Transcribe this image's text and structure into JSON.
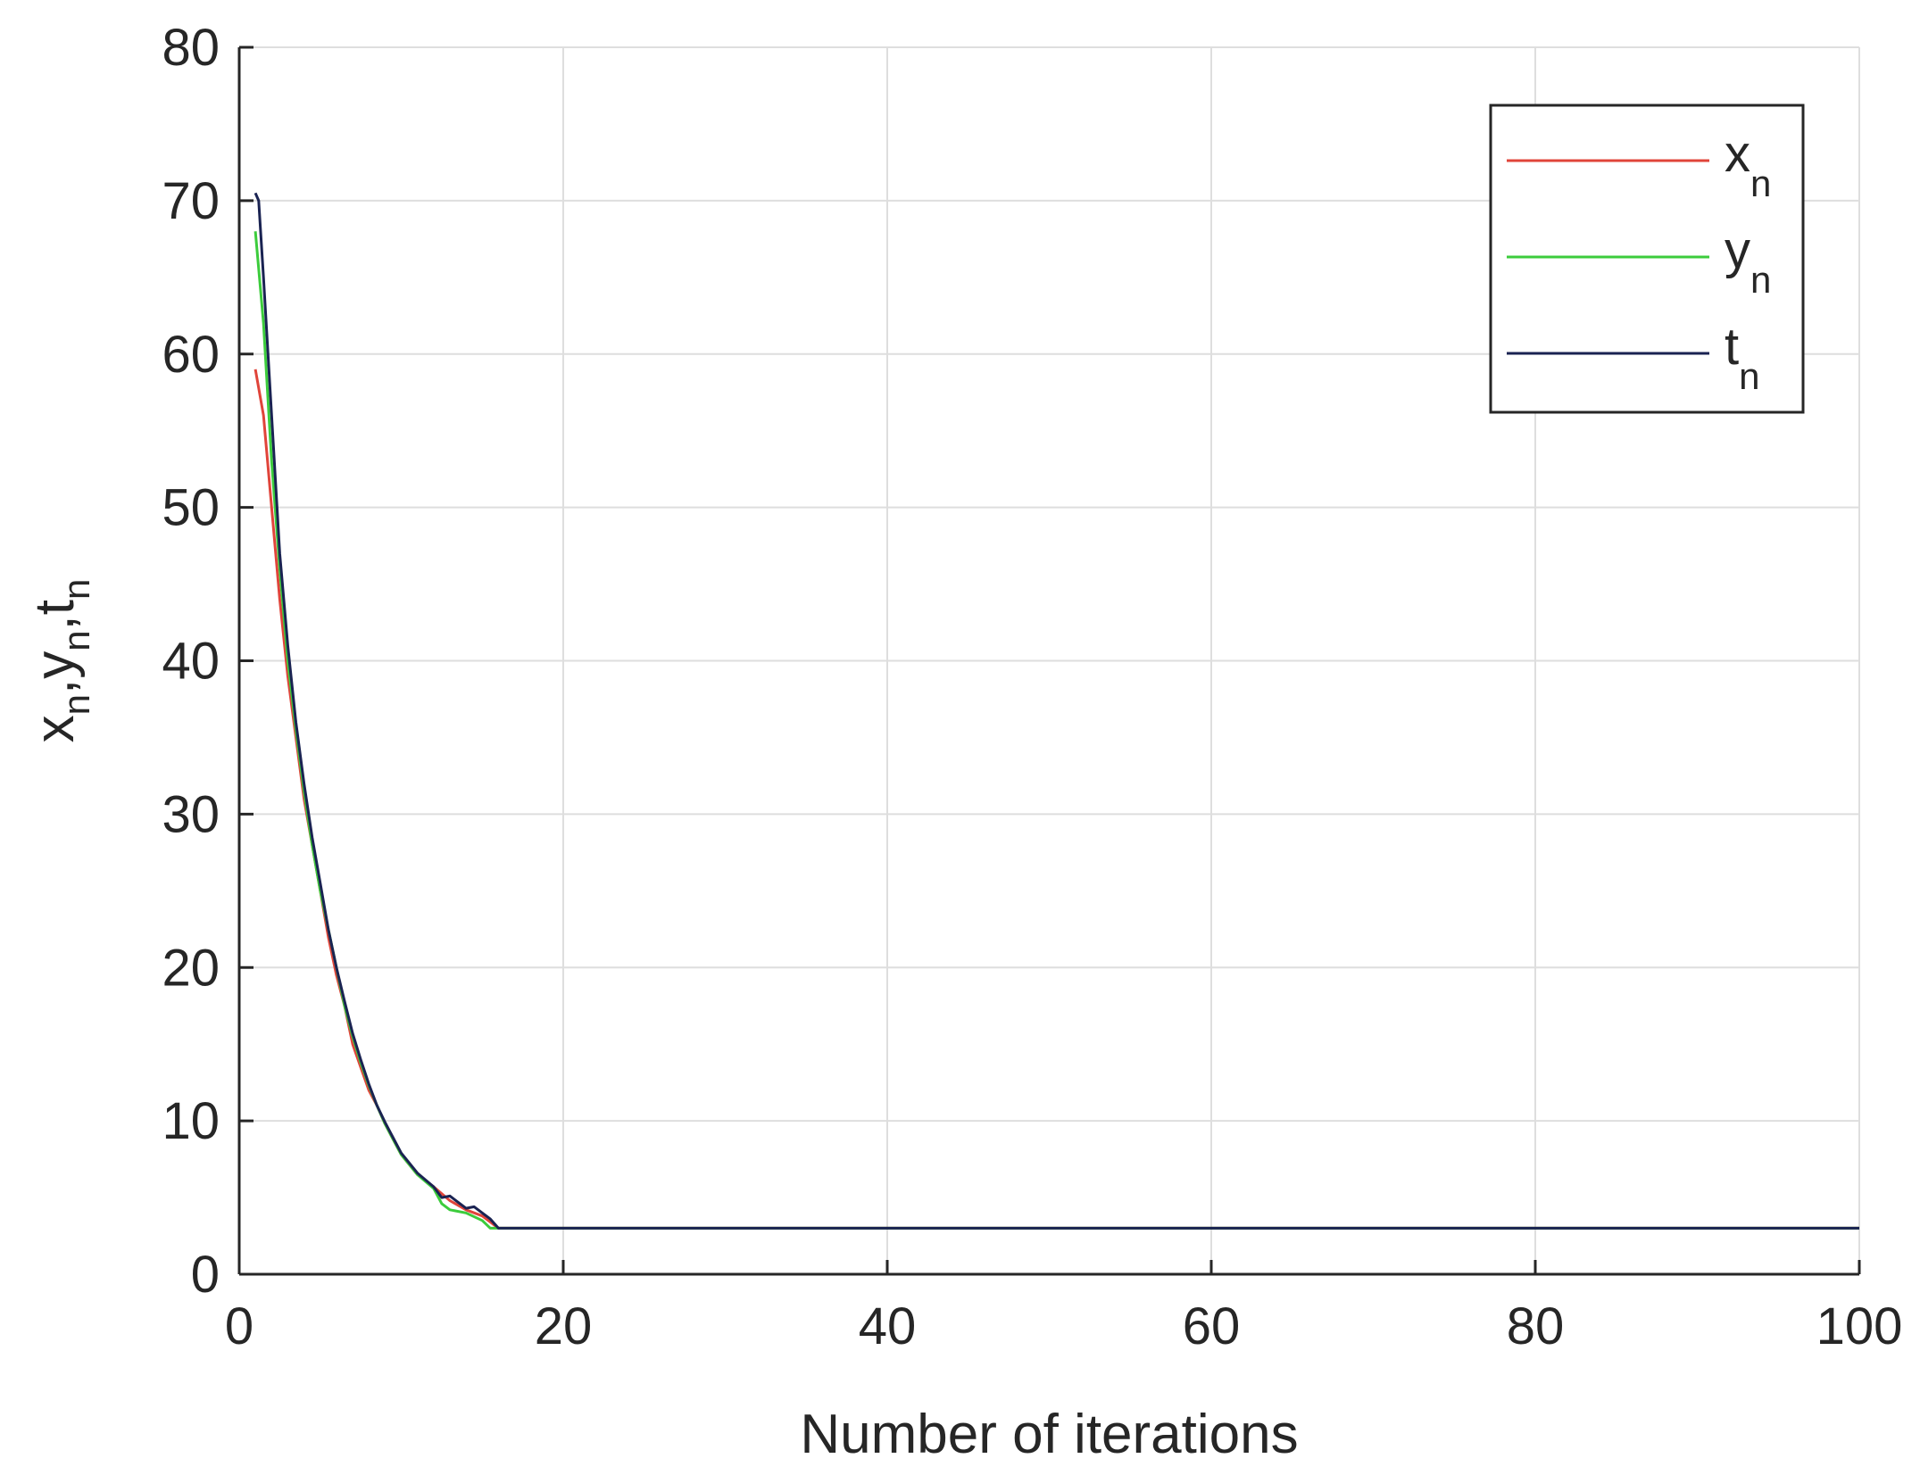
{
  "chart_data": {
    "type": "line",
    "xlabel": "Number of iterations",
    "ylabel": {
      "parts": [
        [
          "x",
          "n"
        ],
        [
          "y",
          "n"
        ],
        [
          "t",
          "n"
        ]
      ],
      "separator": ","
    },
    "xlim": [
      0,
      100
    ],
    "ylim": [
      0,
      80
    ],
    "xticks": [
      0,
      20,
      40,
      60,
      80,
      100
    ],
    "yticks": [
      0,
      10,
      20,
      30,
      40,
      50,
      60,
      70,
      80
    ],
    "grid": true,
    "legend_position": "top-right",
    "series": [
      {
        "name": "x",
        "name_sub": "n",
        "color": "#e0443a",
        "points": [
          [
            1,
            59
          ],
          [
            1.5,
            56
          ],
          [
            2,
            50
          ],
          [
            2.5,
            44
          ],
          [
            3,
            39
          ],
          [
            3.5,
            35
          ],
          [
            4,
            31
          ],
          [
            4.5,
            28
          ],
          [
            5,
            25
          ],
          [
            5.5,
            22
          ],
          [
            6,
            19.5
          ],
          [
            6.5,
            17.5
          ],
          [
            7,
            15
          ],
          [
            7.5,
            13.5
          ],
          [
            8,
            12
          ],
          [
            8.5,
            11
          ],
          [
            9,
            9.8
          ],
          [
            9.5,
            8.8
          ],
          [
            10,
            7.8
          ],
          [
            11,
            6.5
          ],
          [
            12,
            5.7
          ],
          [
            13,
            4.8
          ],
          [
            14,
            4.2
          ],
          [
            15,
            3.8
          ],
          [
            16,
            3
          ],
          [
            20,
            3
          ],
          [
            40,
            3
          ],
          [
            60,
            3
          ],
          [
            80,
            3
          ],
          [
            100,
            3
          ]
        ]
      },
      {
        "name": "y",
        "name_sub": "n",
        "color": "#3ccc3c",
        "points": [
          [
            1,
            68
          ],
          [
            1.5,
            62
          ],
          [
            2,
            53
          ],
          [
            2.5,
            46
          ],
          [
            3,
            40
          ],
          [
            3.5,
            35.5
          ],
          [
            4,
            31.5
          ],
          [
            4.5,
            28
          ],
          [
            5,
            25
          ],
          [
            5.5,
            22.5
          ],
          [
            6,
            20
          ],
          [
            6.5,
            17.5
          ],
          [
            7,
            15.5
          ],
          [
            7.5,
            13.8
          ],
          [
            8,
            12.3
          ],
          [
            8.5,
            11
          ],
          [
            9,
            9.8
          ],
          [
            9.5,
            8.8
          ],
          [
            10,
            7.8
          ],
          [
            11,
            6.5
          ],
          [
            12,
            5.6
          ],
          [
            12.5,
            4.6
          ],
          [
            13,
            4.2
          ],
          [
            14,
            4.0
          ],
          [
            15,
            3.5
          ],
          [
            15.5,
            3.0
          ],
          [
            16,
            3
          ],
          [
            20,
            3
          ],
          [
            40,
            3
          ],
          [
            60,
            3
          ],
          [
            80,
            3
          ],
          [
            100,
            3
          ]
        ]
      },
      {
        "name": "t",
        "name_sub": "n",
        "color": "#1a2352",
        "points": [
          [
            1,
            70.5
          ],
          [
            1.2,
            70
          ],
          [
            1.5,
            65
          ],
          [
            2,
            56
          ],
          [
            2.5,
            47
          ],
          [
            3,
            41
          ],
          [
            3.5,
            36
          ],
          [
            4,
            32
          ],
          [
            4.5,
            28.5
          ],
          [
            5,
            25.5
          ],
          [
            5.5,
            22.5
          ],
          [
            6,
            20
          ],
          [
            6.5,
            17.8
          ],
          [
            7,
            15.7
          ],
          [
            7.5,
            14
          ],
          [
            8,
            12.4
          ],
          [
            8.5,
            11
          ],
          [
            9,
            9.9
          ],
          [
            9.5,
            8.9
          ],
          [
            10,
            7.9
          ],
          [
            11,
            6.6
          ],
          [
            12,
            5.7
          ],
          [
            12.5,
            5.0
          ],
          [
            13,
            5.1
          ],
          [
            13.5,
            4.7
          ],
          [
            14,
            4.3
          ],
          [
            14.5,
            4.4
          ],
          [
            15,
            4.0
          ],
          [
            15.5,
            3.6
          ],
          [
            16,
            3
          ],
          [
            20,
            3
          ],
          [
            40,
            3
          ],
          [
            60,
            3
          ],
          [
            80,
            3
          ],
          [
            100,
            3
          ]
        ]
      }
    ]
  }
}
